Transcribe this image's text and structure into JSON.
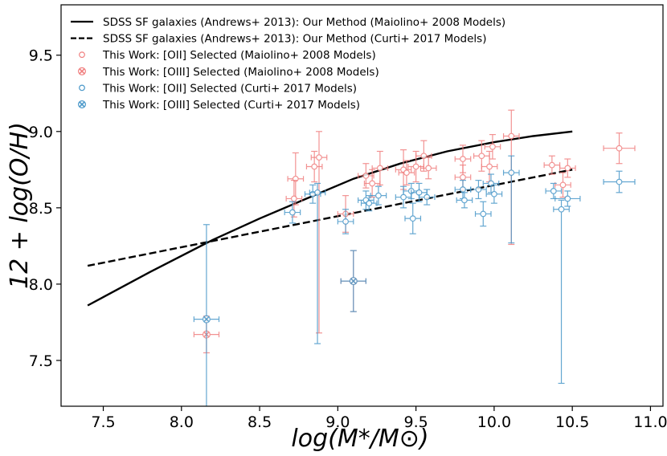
{
  "chart_data": {
    "type": "scatter",
    "title": "",
    "xlabel": "log(M*/M⊙)",
    "ylabel": "12 + log(O/H)",
    "xlim": [
      7.23,
      11.08
    ],
    "ylim": [
      7.2,
      9.83
    ],
    "xticks": [
      7.5,
      8.0,
      8.5,
      9.0,
      9.5,
      10.0,
      10.5,
      11.0
    ],
    "xtick_labels": [
      "7.5",
      "8.0",
      "8.5",
      "9.0",
      "9.5",
      "10.0",
      "10.5",
      "11.0"
    ],
    "yticks": [
      7.5,
      8.0,
      8.5,
      9.0,
      9.5
    ],
    "ytick_labels": [
      "7.5",
      "8.0",
      "8.5",
      "9.0",
      "9.5"
    ],
    "grid": false,
    "legend_position": "top-left",
    "colors": {
      "red": "#f08080",
      "blue": "#4a98c9",
      "black": "#000000"
    },
    "lines": [
      {
        "name": "SDSS SF galaxies (Andrews+ 2013): Our Method (Maiolino+ 2008 Models)",
        "style": "solid",
        "x": [
          7.4,
          7.8,
          8.2,
          8.5,
          8.8,
          9.1,
          9.4,
          9.7,
          10.0,
          10.25,
          10.5
        ],
        "y": [
          7.86,
          8.08,
          8.29,
          8.43,
          8.56,
          8.69,
          8.79,
          8.87,
          8.93,
          8.97,
          9.0
        ]
      },
      {
        "name": "SDSS SF galaxies (Andrews+ 2013): Our Method (Curti+ 2017 Models)",
        "style": "dashed",
        "x": [
          7.4,
          10.5
        ],
        "y": [
          8.12,
          8.75
        ]
      }
    ],
    "series": [
      {
        "name": "This Work: [OII] Selected (Maiolino+ 2008 Models)",
        "color": "red",
        "marker": "circle",
        "points": [
          {
            "x": 8.73,
            "y": 8.69,
            "xerr": 0.05,
            "yerr": 0.17
          },
          {
            "x": 8.72,
            "y": 8.56,
            "xerr": 0.05,
            "yerr": 0.12
          },
          {
            "x": 8.85,
            "y": 8.77,
            "xerr": 0.05,
            "yerr": 0.1
          },
          {
            "x": 8.88,
            "y": 8.83,
            "xerr": 0.05,
            "yerr": 0.17,
            "yerr_lo": 1.15
          },
          {
            "x": 9.05,
            "y": 8.46,
            "xerr": 0.05,
            "yerr": 0.12
          },
          {
            "x": 9.18,
            "y": 8.71,
            "xerr": 0.05,
            "yerr": 0.08
          },
          {
            "x": 9.22,
            "y": 8.66,
            "xerr": 0.05,
            "yerr": 0.09
          },
          {
            "x": 9.27,
            "y": 8.76,
            "xerr": 0.05,
            "yerr": 0.11
          },
          {
            "x": 9.42,
            "y": 8.75,
            "xerr": 0.05,
            "yerr": 0.13
          },
          {
            "x": 9.44,
            "y": 8.73,
            "xerr": 0.05,
            "yerr": 0.08
          },
          {
            "x": 9.5,
            "y": 8.77,
            "xerr": 0.05,
            "yerr": 0.1
          },
          {
            "x": 9.55,
            "y": 8.84,
            "xerr": 0.05,
            "yerr": 0.1
          },
          {
            "x": 9.58,
            "y": 8.76,
            "xerr": 0.05,
            "yerr": 0.07
          },
          {
            "x": 9.8,
            "y": 8.82,
            "xerr": 0.05,
            "yerr": 0.09
          },
          {
            "x": 9.8,
            "y": 8.7,
            "xerr": 0.05,
            "yerr": 0.08
          },
          {
            "x": 9.92,
            "y": 8.84,
            "xerr": 0.05,
            "yerr": 0.1
          },
          {
            "x": 9.97,
            "y": 8.77,
            "xerr": 0.05,
            "yerr": 0.1
          },
          {
            "x": 9.99,
            "y": 8.9,
            "xerr": 0.05,
            "yerr": 0.08
          },
          {
            "x": 10.11,
            "y": 8.97,
            "xerr": 0.05,
            "yerr": 0.17,
            "yerr_lo": 0.71
          },
          {
            "x": 10.37,
            "y": 8.78,
            "xerr": 0.05,
            "yerr": 0.06
          },
          {
            "x": 10.44,
            "y": 8.65,
            "xerr": 0.05,
            "yerr": 0.08
          },
          {
            "x": 10.47,
            "y": 8.76,
            "xerr": 0.05,
            "yerr": 0.06
          },
          {
            "x": 10.8,
            "y": 8.89,
            "xerr": 0.1,
            "yerr": 0.1
          }
        ]
      },
      {
        "name": "This Work: [OIII] Selected (Maiolino+ 2008 Models)",
        "color": "red",
        "marker": "cross",
        "points": [
          {
            "x": 8.16,
            "y": 7.67,
            "xerr": 0.08,
            "yerr": 0.12
          },
          {
            "x": 9.1,
            "y": 8.02,
            "xerr": 0.08,
            "yerr": 0.2
          }
        ]
      },
      {
        "name": "This Work: [OII] Selected (Curti+ 2017 Models)",
        "color": "blue",
        "marker": "circle",
        "points": [
          {
            "x": 8.71,
            "y": 8.47,
            "xerr": 0.05,
            "yerr": 0.07
          },
          {
            "x": 8.84,
            "y": 8.59,
            "xerr": 0.05,
            "yerr": 0.06
          },
          {
            "x": 8.87,
            "y": 8.6,
            "xerr": 0.05,
            "yerr": 0.06,
            "yerr_lo": 0.99
          },
          {
            "x": 9.05,
            "y": 8.41,
            "xerr": 0.05,
            "yerr": 0.08
          },
          {
            "x": 9.18,
            "y": 8.55,
            "xerr": 0.05,
            "yerr": 0.06
          },
          {
            "x": 9.2,
            "y": 8.53,
            "xerr": 0.05,
            "yerr": 0.05
          },
          {
            "x": 9.26,
            "y": 8.58,
            "xerr": 0.05,
            "yerr": 0.06
          },
          {
            "x": 9.42,
            "y": 8.57,
            "xerr": 0.05,
            "yerr": 0.07
          },
          {
            "x": 9.47,
            "y": 8.61,
            "xerr": 0.05,
            "yerr": 0.05
          },
          {
            "x": 9.48,
            "y": 8.43,
            "xerr": 0.05,
            "yerr": 0.1
          },
          {
            "x": 9.52,
            "y": 8.6,
            "xerr": 0.05,
            "yerr": 0.06
          },
          {
            "x": 9.57,
            "y": 8.57,
            "xerr": 0.05,
            "yerr": 0.05
          },
          {
            "x": 9.8,
            "y": 8.62,
            "xerr": 0.05,
            "yerr": 0.06
          },
          {
            "x": 9.81,
            "y": 8.55,
            "xerr": 0.05,
            "yerr": 0.05
          },
          {
            "x": 9.9,
            "y": 8.62,
            "xerr": 0.05,
            "yerr": 0.06
          },
          {
            "x": 9.93,
            "y": 8.46,
            "xerr": 0.05,
            "yerr": 0.08
          },
          {
            "x": 9.98,
            "y": 8.66,
            "xerr": 0.05,
            "yerr": 0.06
          },
          {
            "x": 10.0,
            "y": 8.59,
            "xerr": 0.05,
            "yerr": 0.06
          },
          {
            "x": 10.11,
            "y": 8.73,
            "xerr": 0.05,
            "yerr": 0.11,
            "yerr_lo": 0.46
          },
          {
            "x": 10.38,
            "y": 8.61,
            "xerr": 0.05,
            "yerr": 0.05
          },
          {
            "x": 10.43,
            "y": 8.49,
            "xerr": 0.05,
            "yerr": 0.06,
            "yerr_lo": 1.14
          },
          {
            "x": 10.47,
            "y": 8.56,
            "xerr": 0.08,
            "yerr": 0.05
          },
          {
            "x": 10.8,
            "y": 8.67,
            "xerr": 0.1,
            "yerr": 0.07
          }
        ]
      },
      {
        "name": "This Work: [OIII] Selected (Curti+ 2017 Models)",
        "color": "blue",
        "marker": "cross",
        "points": [
          {
            "x": 8.16,
            "y": 7.77,
            "xerr": 0.08,
            "yerr": 0.62,
            "yerr_lo": 0.6
          },
          {
            "x": 9.1,
            "y": 8.02,
            "xerr": 0.08,
            "yerr": 0.2
          }
        ]
      }
    ]
  }
}
